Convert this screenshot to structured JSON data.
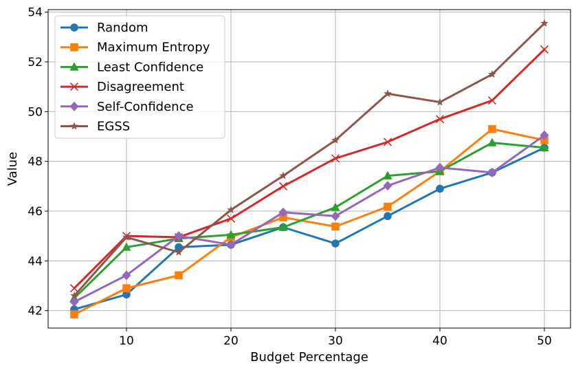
{
  "chart_data": {
    "type": "line",
    "title": "",
    "xlabel": "Budget Percentage",
    "ylabel": "Value",
    "xlim": [
      2.5,
      52.5
    ],
    "ylim": [
      41.3,
      54.1
    ],
    "xticks": [
      10,
      20,
      30,
      40,
      50
    ],
    "yticks": [
      42,
      44,
      46,
      48,
      50,
      52,
      54
    ],
    "grid": true,
    "legend_position": "top-left",
    "x": [
      5,
      10,
      15,
      20,
      25,
      30,
      35,
      40,
      45,
      50
    ],
    "series": [
      {
        "name": "Random",
        "color": "#1f77b4",
        "marker": "circle",
        "values": [
          42.05,
          42.65,
          44.55,
          44.65,
          45.35,
          44.7,
          45.8,
          46.9,
          47.55,
          48.55
        ]
      },
      {
        "name": "Maximum Entropy",
        "color": "#ff7f0e",
        "marker": "square",
        "values": [
          41.85,
          42.9,
          43.42,
          44.95,
          45.75,
          45.38,
          46.18,
          47.6,
          49.3,
          48.85
        ]
      },
      {
        "name": "Least Confidence",
        "color": "#2ca02c",
        "marker": "triangle",
        "values": [
          42.5,
          44.55,
          44.9,
          45.05,
          45.35,
          46.15,
          47.42,
          47.6,
          48.75,
          48.55
        ]
      },
      {
        "name": "Disagreement",
        "color": "#d62728",
        "marker": "x",
        "values": [
          42.9,
          45.0,
          44.95,
          45.7,
          47.0,
          48.12,
          48.78,
          49.7,
          50.45,
          52.5
        ]
      },
      {
        "name": "Self-Confidence",
        "color": "#9467bd",
        "marker": "diamond",
        "values": [
          42.35,
          43.42,
          45.0,
          44.65,
          45.95,
          45.8,
          47.02,
          47.75,
          47.55,
          49.05
        ]
      },
      {
        "name": "EGSS",
        "color": "#8c564b",
        "marker": "star",
        "values": [
          42.6,
          44.95,
          44.35,
          46.05,
          47.42,
          48.85,
          50.72,
          50.38,
          51.5,
          53.55
        ]
      }
    ]
  }
}
